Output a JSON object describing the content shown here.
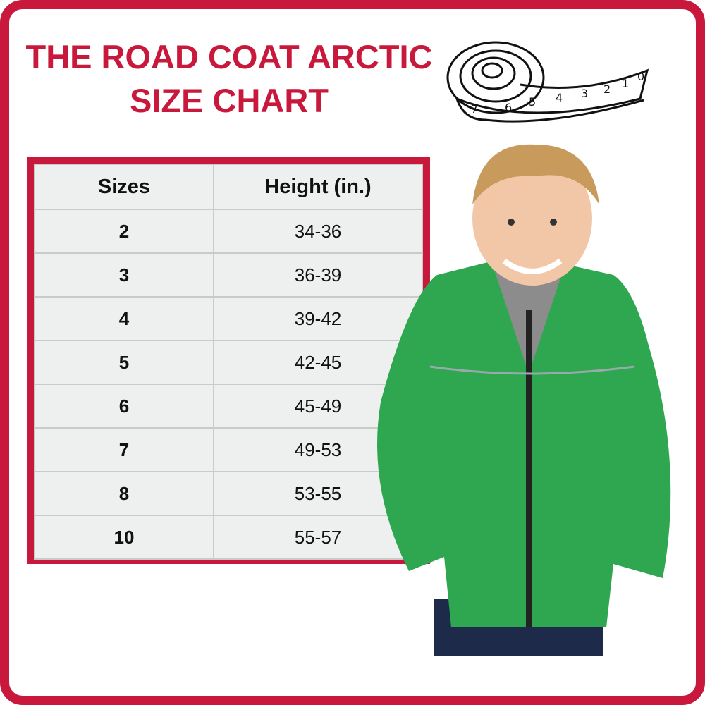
{
  "title": {
    "line1": "THE ROAD COAT ARCTIC",
    "line2": "SIZE CHART"
  },
  "colors": {
    "accent": "#c8193c",
    "table_bg": "#eef0ef",
    "jacket": "#2fa650"
  },
  "icons": {
    "tape": "measuring-tape-icon"
  },
  "tape_numbers": [
    "7",
    "6",
    "5",
    "4",
    "3",
    "2",
    "1",
    "0"
  ],
  "table": {
    "headers": [
      "Sizes",
      "Height (in.)"
    ],
    "rows": [
      [
        "2",
        "34-36"
      ],
      [
        "3",
        "36-39"
      ],
      [
        "4",
        "39-42"
      ],
      [
        "5",
        "42-45"
      ],
      [
        "6",
        "45-49"
      ],
      [
        "7",
        "49-53"
      ],
      [
        "8",
        "53-55"
      ],
      [
        "10",
        "55-57"
      ]
    ]
  }
}
